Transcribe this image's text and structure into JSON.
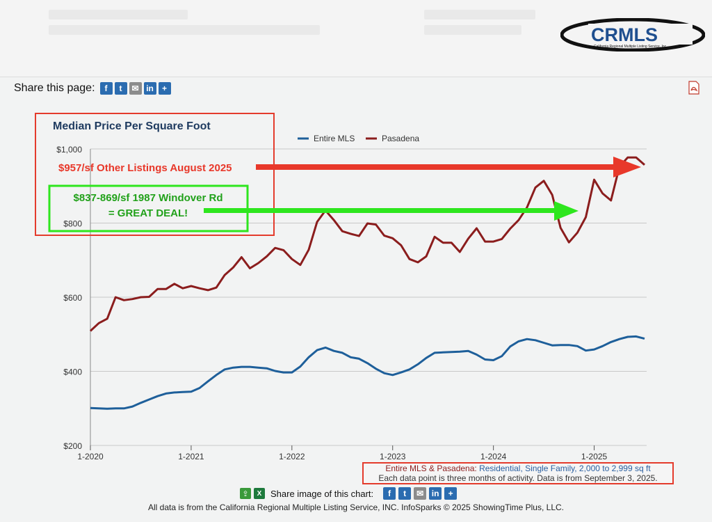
{
  "header": {
    "logo_text": "CRMLS",
    "logo_subtext": "California Regional Multiple Listing Service, Inc."
  },
  "share_page": {
    "label": "Share this page:",
    "icons": [
      "facebook-icon",
      "twitter-icon",
      "email-icon",
      "linkedin-icon",
      "plus-icon"
    ]
  },
  "colors": {
    "entire_mls": "#1e5f9a",
    "pasadena": "#8b1d1d",
    "red_annotation": "#e8382a",
    "green_annotation": "#2ee61e"
  },
  "chart_data": {
    "type": "line",
    "title": "Median Price Per Square Foot",
    "x_labels": [
      "1-2020",
      "1-2021",
      "1-2022",
      "1-2023",
      "1-2024",
      "1-2025"
    ],
    "ylim": [
      200,
      1000
    ],
    "y_ticks": [
      "$200",
      "$400",
      "$600",
      "$800",
      "$1,000"
    ],
    "grid": true,
    "legend_position": "top-center",
    "series": [
      {
        "name": "Entire MLS",
        "color": "#1e5f9a",
        "values": [
          301,
          300,
          299,
          300,
          300,
          305,
          315,
          324,
          333,
          340,
          343,
          344,
          345,
          355,
          373,
          390,
          405,
          410,
          412,
          412,
          410,
          408,
          401,
          397,
          397,
          413,
          438,
          457,
          464,
          455,
          450,
          438,
          434,
          422,
          407,
          395,
          390,
          397,
          405,
          419,
          436,
          450,
          451,
          452,
          453,
          455,
          445,
          432,
          430,
          441,
          467,
          481,
          487,
          484,
          477,
          470,
          471,
          471,
          468,
          456,
          459,
          468,
          479,
          487,
          493,
          494,
          488
        ]
      },
      {
        "name": "Pasadena",
        "color": "#8b1d1d",
        "values": [
          509,
          530,
          542,
          600,
          592,
          595,
          600,
          601,
          622,
          622,
          636,
          624,
          630,
          624,
          619,
          626,
          660,
          680,
          708,
          678,
          692,
          710,
          733,
          727,
          703,
          687,
          728,
          803,
          834,
          808,
          778,
          771,
          765,
          799,
          796,
          766,
          759,
          740,
          703,
          694,
          710,
          763,
          747,
          747,
          722,
          758,
          786,
          750,
          750,
          757,
          785,
          808,
          842,
          896,
          914,
          876,
          787,
          748,
          774,
          816,
          917,
          880,
          861,
          952,
          977,
          977,
          957
        ]
      }
    ]
  },
  "annotations": {
    "box_title": "",
    "red_text": "$957/sf Other Listings August 2025",
    "green_line1": "$837-869/sf 1987 Windover Rd",
    "green_line2": "= GREAT DEAL!"
  },
  "info_box": {
    "series_names": "Entire MLS & Pasadena:",
    "criteria": "Residential, Single Family, 2,000 to 2,999 sq ft",
    "note": "Each data point is three months of activity. Data is from September 3, 2025."
  },
  "share_chart": {
    "label": "Share image of this chart:"
  },
  "footer": {
    "text": "All data is from the California Regional Multiple Listing Service, INC. InfoSparks © 2025 ShowingTime Plus, LLC."
  }
}
